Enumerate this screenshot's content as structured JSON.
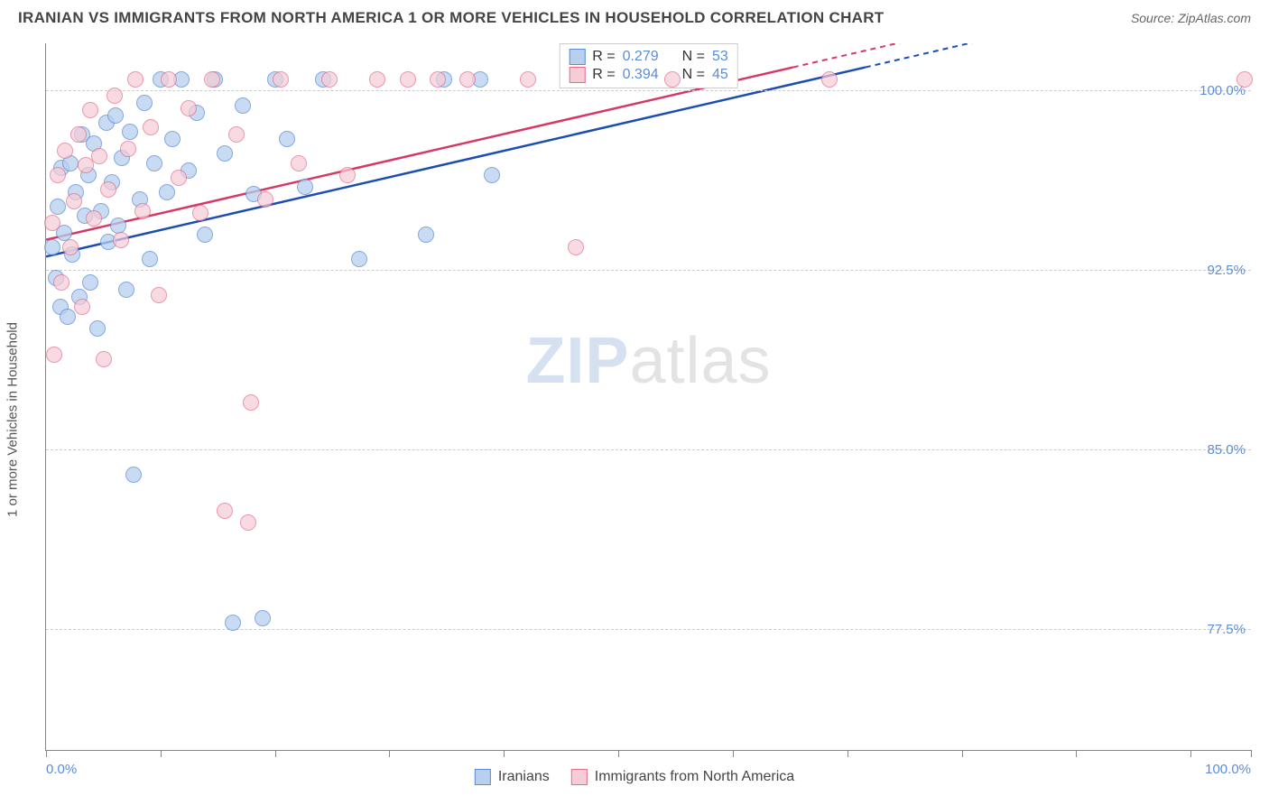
{
  "header": {
    "title": "IRANIAN VS IMMIGRANTS FROM NORTH AMERICA 1 OR MORE VEHICLES IN HOUSEHOLD CORRELATION CHART",
    "source_label": "Source: ",
    "source_name": "ZipAtlas.com"
  },
  "chart": {
    "type": "scatter",
    "y_axis_label": "1 or more Vehicles in Household",
    "background_color": "#ffffff",
    "grid_color": "#cccccc",
    "axis_color": "#888888",
    "xlim": [
      0,
      100
    ],
    "ylim": [
      72.5,
      102
    ],
    "x_ticks": [
      0,
      9.5,
      19,
      28.5,
      38,
      47.5,
      57,
      66.5,
      76,
      85.5,
      95,
      100
    ],
    "x_tick_labels_show": [
      0,
      100
    ],
    "x_tick_labels": {
      "0": "0.0%",
      "100": "100.0%"
    },
    "y_grid": [
      77.5,
      85.0,
      92.5,
      100.0
    ],
    "y_tick_labels": {
      "77.5": "77.5%",
      "85.0": "85.0%",
      "92.5": "92.5%",
      "100.0": "100.0%"
    },
    "watermark": {
      "zip": "ZIP",
      "atlas": "atlas"
    },
    "series": [
      {
        "name": "Iranians",
        "fill": "#b8cfee",
        "stroke": "#5b8dd6",
        "reg_color": "#1b4db3",
        "marker_radius": 9,
        "marker_opacity": 0.75,
        "R": "0.279",
        "N": "53",
        "reg": {
          "x1": 0,
          "y1": 93.1,
          "x2": 68,
          "y2": 101.0,
          "dash_to_x": 87
        },
        "points": [
          [
            0.5,
            93.5
          ],
          [
            0.8,
            92.2
          ],
          [
            1.0,
            95.2
          ],
          [
            1.2,
            91.0
          ],
          [
            1.3,
            96.8
          ],
          [
            1.5,
            94.1
          ],
          [
            1.8,
            90.6
          ],
          [
            2.0,
            97.0
          ],
          [
            2.2,
            93.2
          ],
          [
            2.5,
            95.8
          ],
          [
            2.8,
            91.4
          ],
          [
            3.0,
            98.2
          ],
          [
            3.2,
            94.8
          ],
          [
            3.5,
            96.5
          ],
          [
            3.7,
            92.0
          ],
          [
            4.0,
            97.8
          ],
          [
            4.3,
            90.1
          ],
          [
            4.6,
            95.0
          ],
          [
            5.0,
            98.7
          ],
          [
            5.2,
            93.7
          ],
          [
            5.5,
            96.2
          ],
          [
            5.8,
            99.0
          ],
          [
            6.0,
            94.4
          ],
          [
            6.3,
            97.2
          ],
          [
            6.7,
            91.7
          ],
          [
            7.0,
            98.3
          ],
          [
            7.3,
            84.0
          ],
          [
            7.8,
            95.5
          ],
          [
            8.2,
            99.5
          ],
          [
            8.6,
            93.0
          ],
          [
            9.0,
            97.0
          ],
          [
            9.5,
            100.5
          ],
          [
            10.0,
            95.8
          ],
          [
            10.5,
            98.0
          ],
          [
            11.2,
            100.5
          ],
          [
            11.8,
            96.7
          ],
          [
            12.5,
            99.1
          ],
          [
            13.2,
            94.0
          ],
          [
            14.0,
            100.5
          ],
          [
            14.8,
            97.4
          ],
          [
            15.5,
            77.8
          ],
          [
            16.3,
            99.4
          ],
          [
            17.2,
            95.7
          ],
          [
            18.0,
            78.0
          ],
          [
            19.0,
            100.5
          ],
          [
            20.0,
            98.0
          ],
          [
            21.5,
            96.0
          ],
          [
            23.0,
            100.5
          ],
          [
            26.0,
            93.0
          ],
          [
            31.5,
            94.0
          ],
          [
            33.0,
            100.5
          ],
          [
            36.0,
            100.5
          ],
          [
            37.0,
            96.5
          ]
        ]
      },
      {
        "name": "Immigrants from North America",
        "fill": "#f6ccd6",
        "stroke": "#e56b8a",
        "reg_color": "#d63865",
        "marker_radius": 9,
        "marker_opacity": 0.7,
        "R": "0.394",
        "N": "45",
        "reg": {
          "x1": 0,
          "y1": 93.8,
          "x2": 62,
          "y2": 101.0,
          "dash_to_x": 75
        },
        "points": [
          [
            0.5,
            94.5
          ],
          [
            0.7,
            89.0
          ],
          [
            1.0,
            96.5
          ],
          [
            1.3,
            92.0
          ],
          [
            1.6,
            97.5
          ],
          [
            2.0,
            93.5
          ],
          [
            2.3,
            95.4
          ],
          [
            2.7,
            98.2
          ],
          [
            3.0,
            91.0
          ],
          [
            3.3,
            96.9
          ],
          [
            3.7,
            99.2
          ],
          [
            4.0,
            94.7
          ],
          [
            4.4,
            97.3
          ],
          [
            4.8,
            88.8
          ],
          [
            5.2,
            95.9
          ],
          [
            5.7,
            99.8
          ],
          [
            6.2,
            93.8
          ],
          [
            6.8,
            97.6
          ],
          [
            7.4,
            100.5
          ],
          [
            8.0,
            95.0
          ],
          [
            8.7,
            98.5
          ],
          [
            9.4,
            91.5
          ],
          [
            10.2,
            100.5
          ],
          [
            11.0,
            96.4
          ],
          [
            11.8,
            99.3
          ],
          [
            12.8,
            94.9
          ],
          [
            13.8,
            100.5
          ],
          [
            14.8,
            82.5
          ],
          [
            15.8,
            98.2
          ],
          [
            16.8,
            82.0
          ],
          [
            17.0,
            87.0
          ],
          [
            18.2,
            95.5
          ],
          [
            19.5,
            100.5
          ],
          [
            21.0,
            97.0
          ],
          [
            23.5,
            100.5
          ],
          [
            25.0,
            96.5
          ],
          [
            27.5,
            100.5
          ],
          [
            30.0,
            100.5
          ],
          [
            32.5,
            100.5
          ],
          [
            35.0,
            100.5
          ],
          [
            40.0,
            100.5
          ],
          [
            44.0,
            93.5
          ],
          [
            52.0,
            100.5
          ],
          [
            65.0,
            100.5
          ],
          [
            99.5,
            100.5
          ]
        ]
      }
    ],
    "legend_top": {
      "r_label": "R =",
      "n_label": "N ="
    },
    "legend_bottom": {
      "items": [
        "Iranians",
        "Immigrants from North America"
      ]
    }
  }
}
